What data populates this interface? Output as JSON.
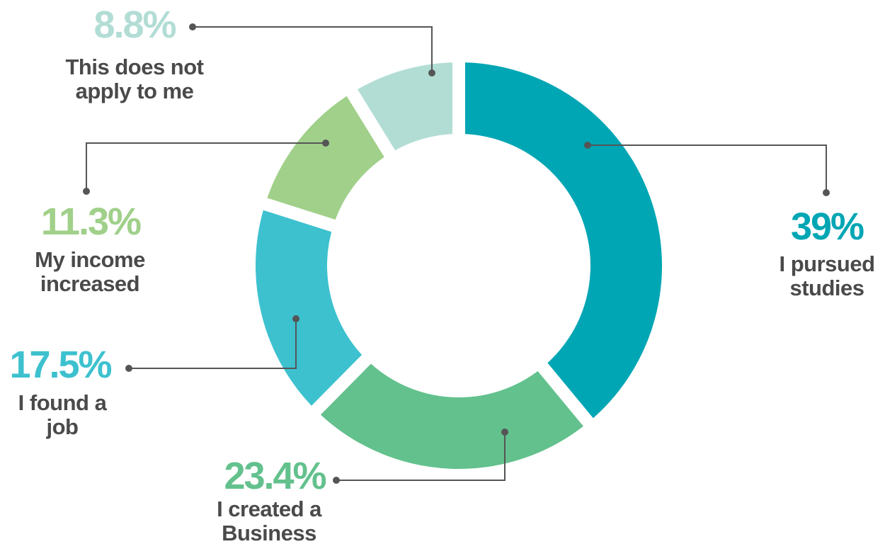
{
  "chart_data": {
    "type": "donut",
    "categories": [
      "I pursued studies",
      "I created a Business",
      "I found a job",
      "My income increased",
      "This does not apply to me"
    ],
    "values": [
      39,
      23.4,
      17.5,
      11.3,
      8.8
    ],
    "value_labels": [
      "39%",
      "23.4%",
      "17.5%",
      "11.3%",
      "8.8%"
    ],
    "colors": [
      "#00a6b4",
      "#63c18d",
      "#3dc1cf",
      "#a0d08a",
      "#b2ddd5"
    ]
  }
}
